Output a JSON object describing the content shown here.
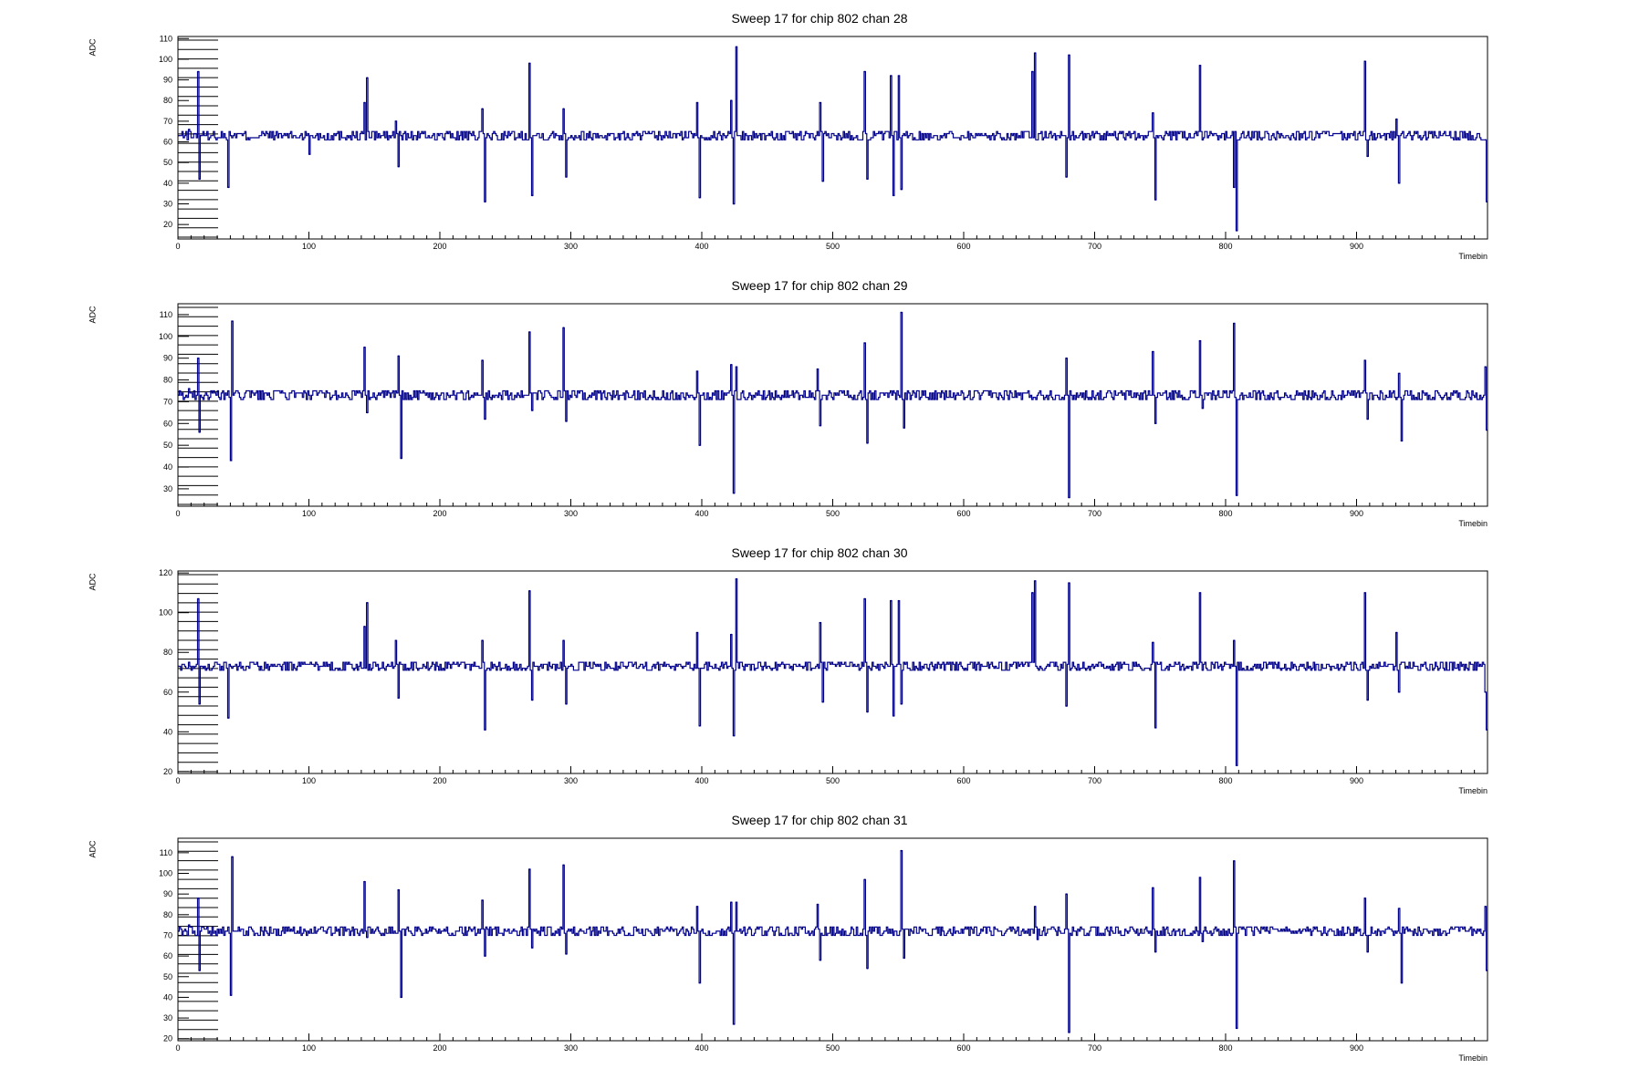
{
  "colors": {
    "line": "#00008b",
    "frame": "#000000",
    "background": "#ffffff"
  },
  "chart_data": [
    {
      "type": "line",
      "title": "Sweep 17 for chip 802 chan 28",
      "xlabel": "Timebin",
      "ylabel": "ADC",
      "xlim": [
        0,
        1000
      ],
      "ylim": [
        13,
        111
      ],
      "xticks": [
        0,
        100,
        200,
        300,
        400,
        500,
        600,
        700,
        800,
        900
      ],
      "yticks": [
        20,
        30,
        40,
        50,
        60,
        70,
        80,
        90,
        100,
        110
      ],
      "baseline": 63,
      "x": [
        0,
        8,
        15,
        16,
        17,
        38,
        40,
        100,
        142,
        144,
        166,
        168,
        170,
        232,
        234,
        268,
        270,
        294,
        296,
        300,
        396,
        398,
        422,
        424,
        426,
        490,
        492,
        524,
        526,
        544,
        546,
        550,
        552,
        652,
        654,
        678,
        680,
        744,
        746,
        780,
        782,
        806,
        808,
        906,
        908,
        930,
        932,
        998,
        999
      ],
      "y": [
        63,
        66,
        94,
        42,
        63,
        38,
        63,
        54,
        79,
        91,
        70,
        48,
        63,
        76,
        31,
        98,
        34,
        76,
        43,
        63,
        79,
        33,
        80,
        30,
        106,
        79,
        41,
        94,
        42,
        92,
        34,
        92,
        37,
        94,
        103,
        43,
        102,
        74,
        32,
        97,
        61,
        38,
        17,
        99,
        53,
        71,
        40,
        61,
        31
      ]
    },
    {
      "type": "line",
      "title": "Sweep 17 for chip 802 chan 29",
      "xlabel": "Timebin",
      "ylabel": "ADC",
      "xlim": [
        0,
        1000
      ],
      "ylim": [
        22,
        115
      ],
      "xticks": [
        0,
        100,
        200,
        300,
        400,
        500,
        600,
        700,
        800,
        900
      ],
      "yticks": [
        30,
        40,
        50,
        60,
        70,
        80,
        90,
        100,
        110
      ],
      "baseline": 73,
      "x": [
        0,
        8,
        15,
        16,
        17,
        40,
        41,
        142,
        144,
        168,
        170,
        232,
        234,
        268,
        270,
        294,
        296,
        396,
        398,
        422,
        424,
        426,
        488,
        490,
        524,
        526,
        552,
        554,
        678,
        680,
        744,
        746,
        780,
        782,
        806,
        808,
        906,
        908,
        932,
        934,
        998,
        999
      ],
      "y": [
        73,
        76,
        90,
        56,
        73,
        43,
        107,
        95,
        65,
        91,
        44,
        89,
        62,
        102,
        66,
        104,
        61,
        84,
        50,
        87,
        28,
        86,
        85,
        59,
        97,
        51,
        111,
        58,
        90,
        26,
        93,
        60,
        98,
        67,
        106,
        27,
        89,
        62,
        83,
        52,
        86,
        57
      ]
    },
    {
      "type": "line",
      "title": "Sweep 17 for chip 802 chan 30",
      "xlabel": "Timebin",
      "ylabel": "ADC",
      "xlim": [
        0,
        1000
      ],
      "ylim": [
        19,
        121
      ],
      "xticks": [
        0,
        100,
        200,
        300,
        400,
        500,
        600,
        700,
        800,
        900
      ],
      "yticks": [
        20,
        40,
        60,
        80,
        100,
        120
      ],
      "baseline": 73,
      "x": [
        0,
        8,
        15,
        16,
        17,
        38,
        40,
        142,
        144,
        166,
        168,
        232,
        234,
        268,
        270,
        294,
        296,
        396,
        398,
        422,
        424,
        426,
        490,
        492,
        524,
        526,
        544,
        546,
        550,
        552,
        652,
        654,
        678,
        680,
        744,
        746,
        780,
        782,
        806,
        808,
        906,
        908,
        930,
        932,
        998,
        999
      ],
      "y": [
        73,
        75,
        107,
        54,
        73,
        47,
        73,
        93,
        105,
        86,
        57,
        86,
        41,
        111,
        56,
        86,
        54,
        90,
        43,
        89,
        38,
        117,
        95,
        55,
        107,
        50,
        106,
        48,
        106,
        54,
        110,
        116,
        53,
        115,
        85,
        42,
        110,
        71,
        86,
        23,
        110,
        56,
        90,
        60,
        60,
        41
      ]
    },
    {
      "type": "line",
      "title": "Sweep 17 for chip 802 chan 31",
      "xlabel": "Timebin",
      "ylabel": "ADC",
      "xlim": [
        0,
        1000
      ],
      "ylim": [
        19,
        117
      ],
      "xticks": [
        0,
        100,
        200,
        300,
        400,
        500,
        600,
        700,
        800,
        900
      ],
      "yticks": [
        20,
        30,
        40,
        50,
        60,
        70,
        80,
        90,
        100,
        110
      ],
      "baseline": 72,
      "x": [
        0,
        8,
        15,
        16,
        17,
        40,
        41,
        142,
        144,
        168,
        170,
        232,
        234,
        268,
        270,
        294,
        296,
        396,
        398,
        422,
        424,
        426,
        488,
        490,
        524,
        526,
        552,
        554,
        654,
        656,
        678,
        680,
        744,
        746,
        780,
        782,
        806,
        808,
        906,
        908,
        932,
        934,
        998,
        999
      ],
      "y": [
        72,
        75,
        88,
        53,
        72,
        41,
        108,
        96,
        69,
        92,
        40,
        87,
        60,
        102,
        64,
        104,
        61,
        84,
        47,
        86,
        27,
        86,
        85,
        58,
        97,
        54,
        111,
        59,
        84,
        68,
        90,
        23,
        93,
        62,
        98,
        67,
        106,
        25,
        88,
        62,
        83,
        47,
        84,
        53
      ]
    }
  ]
}
